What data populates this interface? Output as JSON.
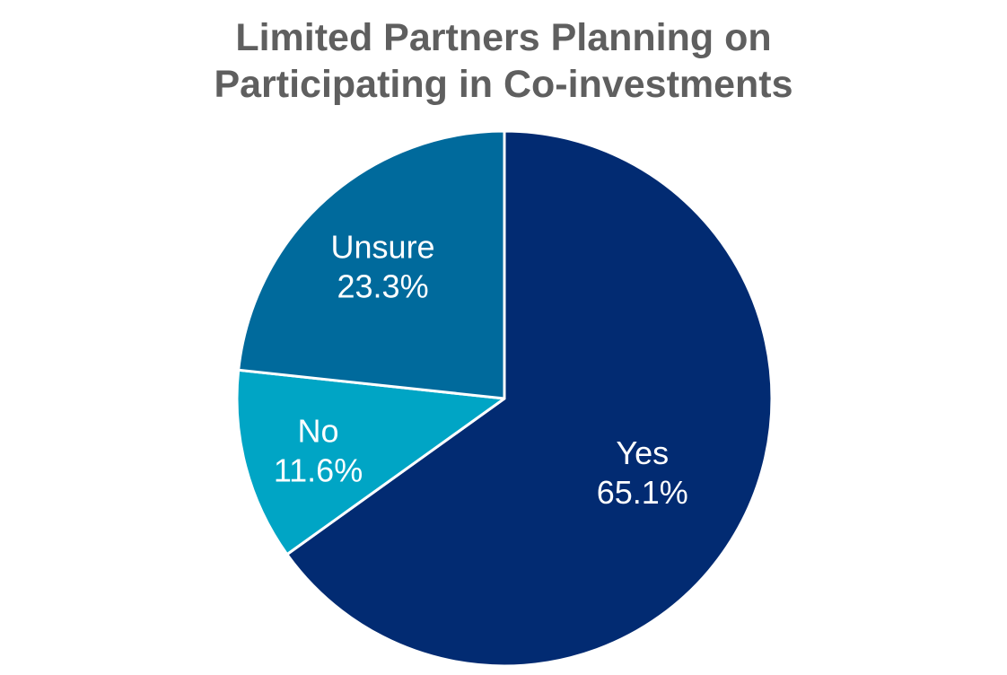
{
  "chart_data": {
    "type": "pie",
    "title_lines": [
      "Limited Partners Planning on",
      "Participating in Co-investments"
    ],
    "slices": [
      {
        "label": "Yes",
        "value_text": "65.1%",
        "value": 65.1,
        "color": "#022b72"
      },
      {
        "label": "No",
        "value_text": "11.6%",
        "value": 11.6,
        "color": "#00a5c5"
      },
      {
        "label": "Unsure",
        "value_text": "23.3%",
        "value": 23.3,
        "color": "#006a9c"
      }
    ],
    "start_angle_deg": 0,
    "direction": "clockwise",
    "separator_color": "#ffffff"
  }
}
